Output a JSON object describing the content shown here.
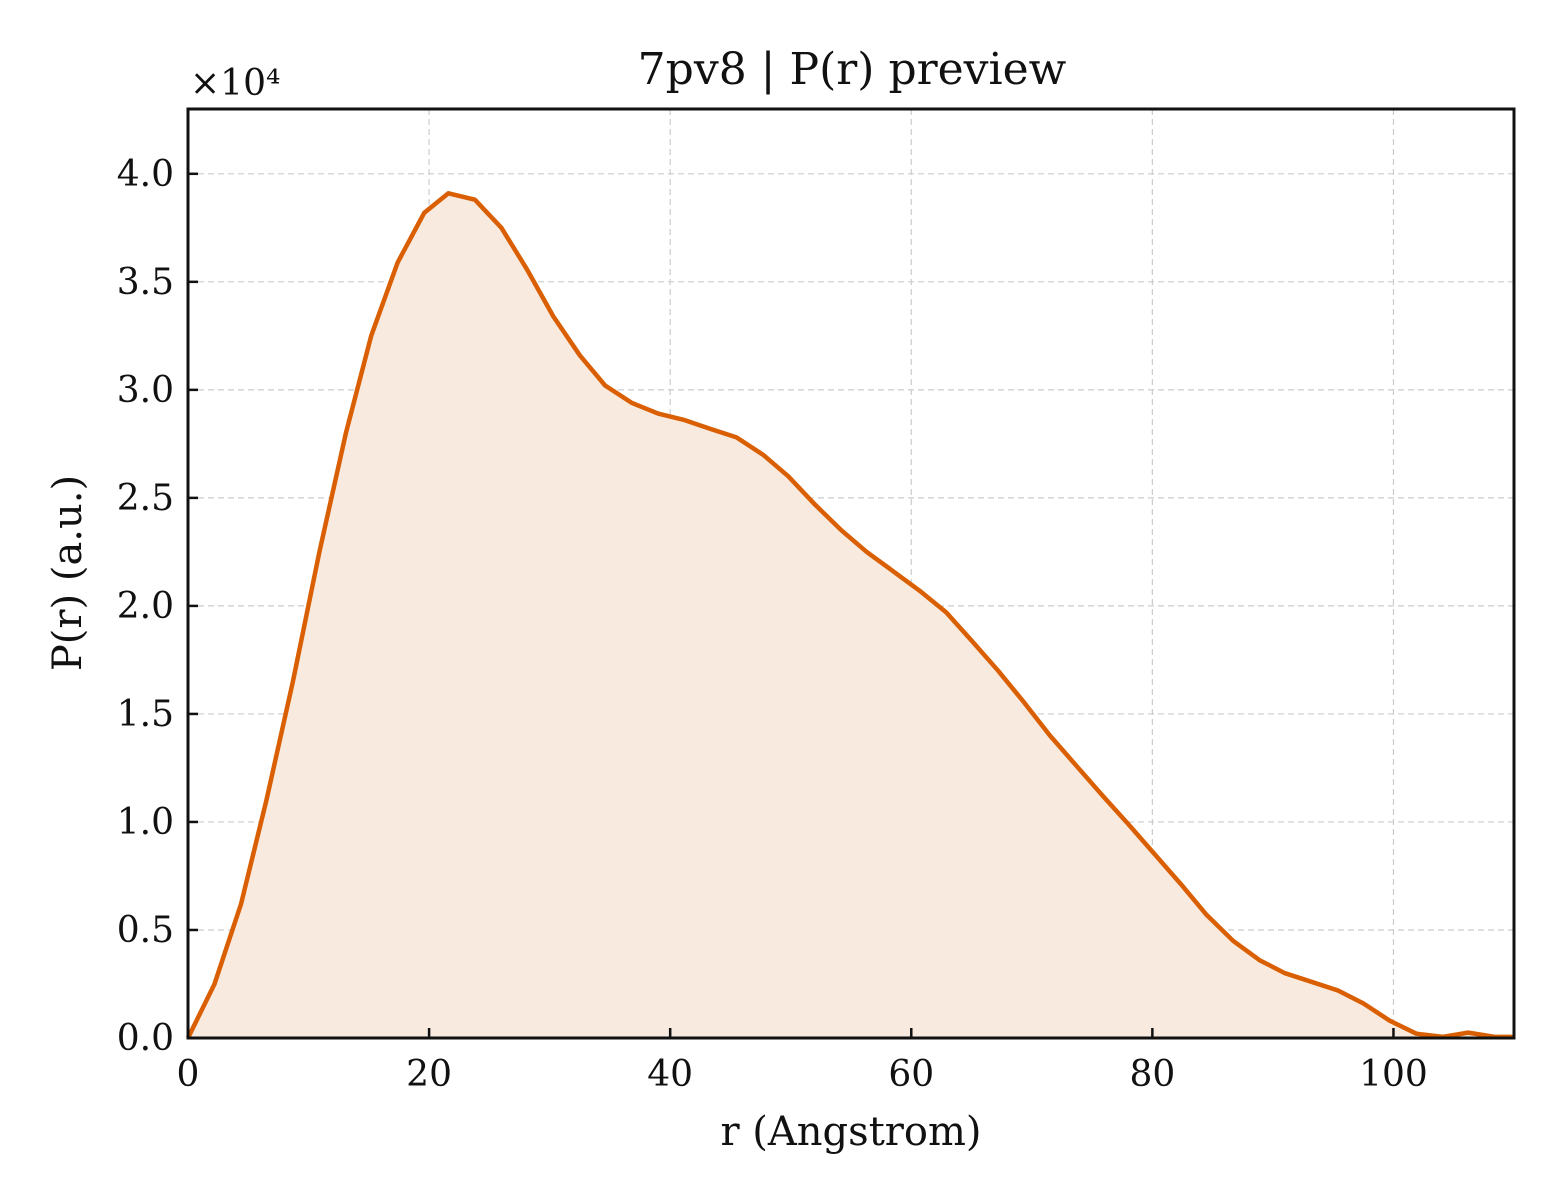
{
  "chart_data": {
    "type": "area",
    "title": "7pv8 | P(r) preview",
    "xlabel": "r (Angstrom)",
    "ylabel": "P(r) (a.u.)",
    "y_scale_label": "×10⁴",
    "xlim": [
      0,
      110
    ],
    "ylim": [
      0,
      43000
    ],
    "xticks": [
      0,
      20,
      40,
      60,
      80,
      100
    ],
    "xtick_labels": [
      "0",
      "20",
      "40",
      "60",
      "80",
      "100"
    ],
    "yticks": [
      0,
      5000,
      10000,
      15000,
      20000,
      25000,
      30000,
      35000,
      40000
    ],
    "ytick_labels": [
      "0.0",
      "0.5",
      "1.0",
      "1.5",
      "2.0",
      "2.5",
      "3.0",
      "3.5",
      "4.0"
    ],
    "grid": true,
    "series": [
      {
        "color": "#d95f02",
        "fill_color": "#f9eadf",
        "x": [
          0,
          2.2,
          4.4,
          6.5,
          8.7,
          10.9,
          13.1,
          15.2,
          17.4,
          19.6,
          21.6,
          23.8,
          26.0,
          28.1,
          30.3,
          32.5,
          34.6,
          36.8,
          39.0,
          41.2,
          43.3,
          45.5,
          47.7,
          49.8,
          52.0,
          54.2,
          56.3,
          58.5,
          60.7,
          62.9,
          65.0,
          67.2,
          69.4,
          71.5,
          73.7,
          75.9,
          78.0,
          80.2,
          82.4,
          84.5,
          86.7,
          88.9,
          91.0,
          93.2,
          95.4,
          97.5,
          99.7,
          101.9,
          104.1,
          106.2,
          108.4,
          110.0
        ],
        "y": [
          0,
          2500,
          6200,
          11000,
          16500,
          22500,
          28000,
          32500,
          35900,
          38200,
          39100,
          38800,
          37500,
          35600,
          33400,
          31600,
          30200,
          29400,
          28900,
          28600,
          28200,
          27800,
          27000,
          26000,
          24700,
          23500,
          22500,
          21600,
          20700,
          19700,
          18400,
          17000,
          15500,
          14000,
          12600,
          11200,
          9900,
          8500,
          7100,
          5700,
          4500,
          3600,
          3000,
          2600,
          2200,
          1600,
          800,
          200,
          50,
          250,
          50,
          50
        ]
      }
    ]
  }
}
